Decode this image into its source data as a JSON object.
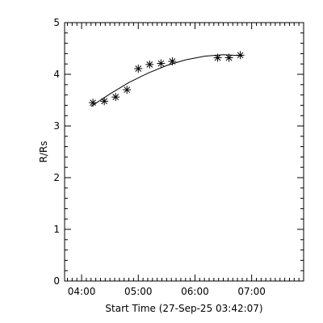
{
  "chart_data": {
    "type": "scatter",
    "xlabel": "Start Time (27-Sep-25 03:42:07)",
    "ylabel": "R/Rs",
    "xlim": [
      "03:42",
      "07:55"
    ],
    "ylim": [
      0,
      5
    ],
    "x_major_ticks": [
      "04:00",
      "05:00",
      "06:00",
      "07:00"
    ],
    "x_tick_labels": [
      "04:00",
      "05:00",
      "06:00",
      "07:00"
    ],
    "y_ticks": [
      0,
      1,
      2,
      3,
      4,
      5
    ],
    "y_tick_labels": [
      "0",
      "1",
      "2",
      "3",
      "4",
      "5"
    ],
    "marker": "asterisk",
    "color": "#000000",
    "series": [
      {
        "points": [
          {
            "x": "04:12",
            "y": 3.45
          },
          {
            "x": "04:24",
            "y": 3.48
          },
          {
            "x": "04:36",
            "y": 3.56
          },
          {
            "x": "04:48",
            "y": 3.7
          },
          {
            "x": "05:00",
            "y": 4.11
          },
          {
            "x": "05:12",
            "y": 4.19
          },
          {
            "x": "05:24",
            "y": 4.21
          },
          {
            "x": "05:36",
            "y": 4.25
          },
          {
            "x": "06:24",
            "y": 4.32
          },
          {
            "x": "06:36",
            "y": 4.32
          },
          {
            "x": "06:48",
            "y": 4.37
          }
        ]
      }
    ],
    "fit_curve": {
      "type": "line",
      "points": [
        {
          "x": "04:10",
          "y": 3.38
        },
        {
          "x": "04:30",
          "y": 3.62
        },
        {
          "x": "04:50",
          "y": 3.84
        },
        {
          "x": "05:10",
          "y": 4.02
        },
        {
          "x": "05:30",
          "y": 4.17
        },
        {
          "x": "05:50",
          "y": 4.28
        },
        {
          "x": "06:10",
          "y": 4.35
        },
        {
          "x": "06:30",
          "y": 4.38
        },
        {
          "x": "06:50",
          "y": 4.36
        }
      ]
    }
  }
}
